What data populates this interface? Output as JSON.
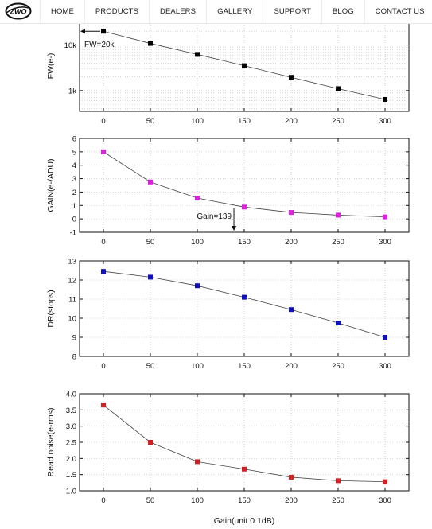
{
  "nav": {
    "logo_text": "ZWO",
    "items": [
      "HOME",
      "PRODUCTS",
      "DEALERS",
      "GALLERY",
      "SUPPORT",
      "BLOG",
      "CONTACT US"
    ]
  },
  "chart_data": [
    {
      "type": "line",
      "ylabel": "FW(e-)",
      "yscale": "log",
      "x": [
        0,
        50,
        100,
        150,
        200,
        250,
        300
      ],
      "series": [
        {
          "values": [
            20000,
            10800,
            6200,
            3500,
            1950,
            1100,
            640
          ],
          "color": "#000000"
        }
      ],
      "ylim": [
        350,
        34000
      ],
      "yticks": [
        1000,
        10000
      ],
      "ytick_labels": [
        "1k",
        "10k"
      ],
      "grid": true,
      "annotations": [
        {
          "text": "FW=20k",
          "x": 0,
          "y": 20000
        }
      ]
    },
    {
      "type": "line",
      "ylabel": "GAIN(e-/ADU)",
      "x": [
        0,
        50,
        100,
        150,
        200,
        250,
        300
      ],
      "series": [
        {
          "values": [
            5.0,
            2.75,
            1.55,
            0.88,
            0.48,
            0.28,
            0.15
          ],
          "color": "#e020e0"
        }
      ],
      "ylim": [
        -1,
        6
      ],
      "yticks": [
        -1,
        0,
        1,
        2,
        3,
        4,
        5,
        6
      ],
      "grid": true,
      "annotations": [
        {
          "text": "Gain=139",
          "x": 139,
          "y": 0.88
        }
      ]
    },
    {
      "type": "line",
      "ylabel": "DR(stops)",
      "x": [
        0,
        50,
        100,
        150,
        200,
        250,
        300
      ],
      "series": [
        {
          "values": [
            12.45,
            12.15,
            11.7,
            11.1,
            10.45,
            9.75,
            9.0
          ],
          "color": "#1010c0"
        }
      ],
      "ylim": [
        8,
        13
      ],
      "yticks": [
        8,
        9,
        10,
        11,
        12,
        13
      ],
      "grid": true
    },
    {
      "type": "line",
      "ylabel": "Read noise(e-rms)",
      "xlabel": "Gain(unit 0.1dB)",
      "x": [
        0,
        50,
        100,
        150,
        200,
        250,
        300
      ],
      "series": [
        {
          "values": [
            3.65,
            2.5,
            1.9,
            1.67,
            1.42,
            1.31,
            1.28
          ],
          "color": "#d02020"
        }
      ],
      "ylim": [
        1.0,
        4.0
      ],
      "yticks": [
        1.0,
        1.5,
        2.0,
        2.5,
        3.0,
        3.5,
        4.0
      ],
      "ytick_labels": [
        "1.0",
        "1.5",
        "2.0",
        "2.5",
        "3.0",
        "3.5",
        "4.0"
      ],
      "grid": true
    }
  ]
}
